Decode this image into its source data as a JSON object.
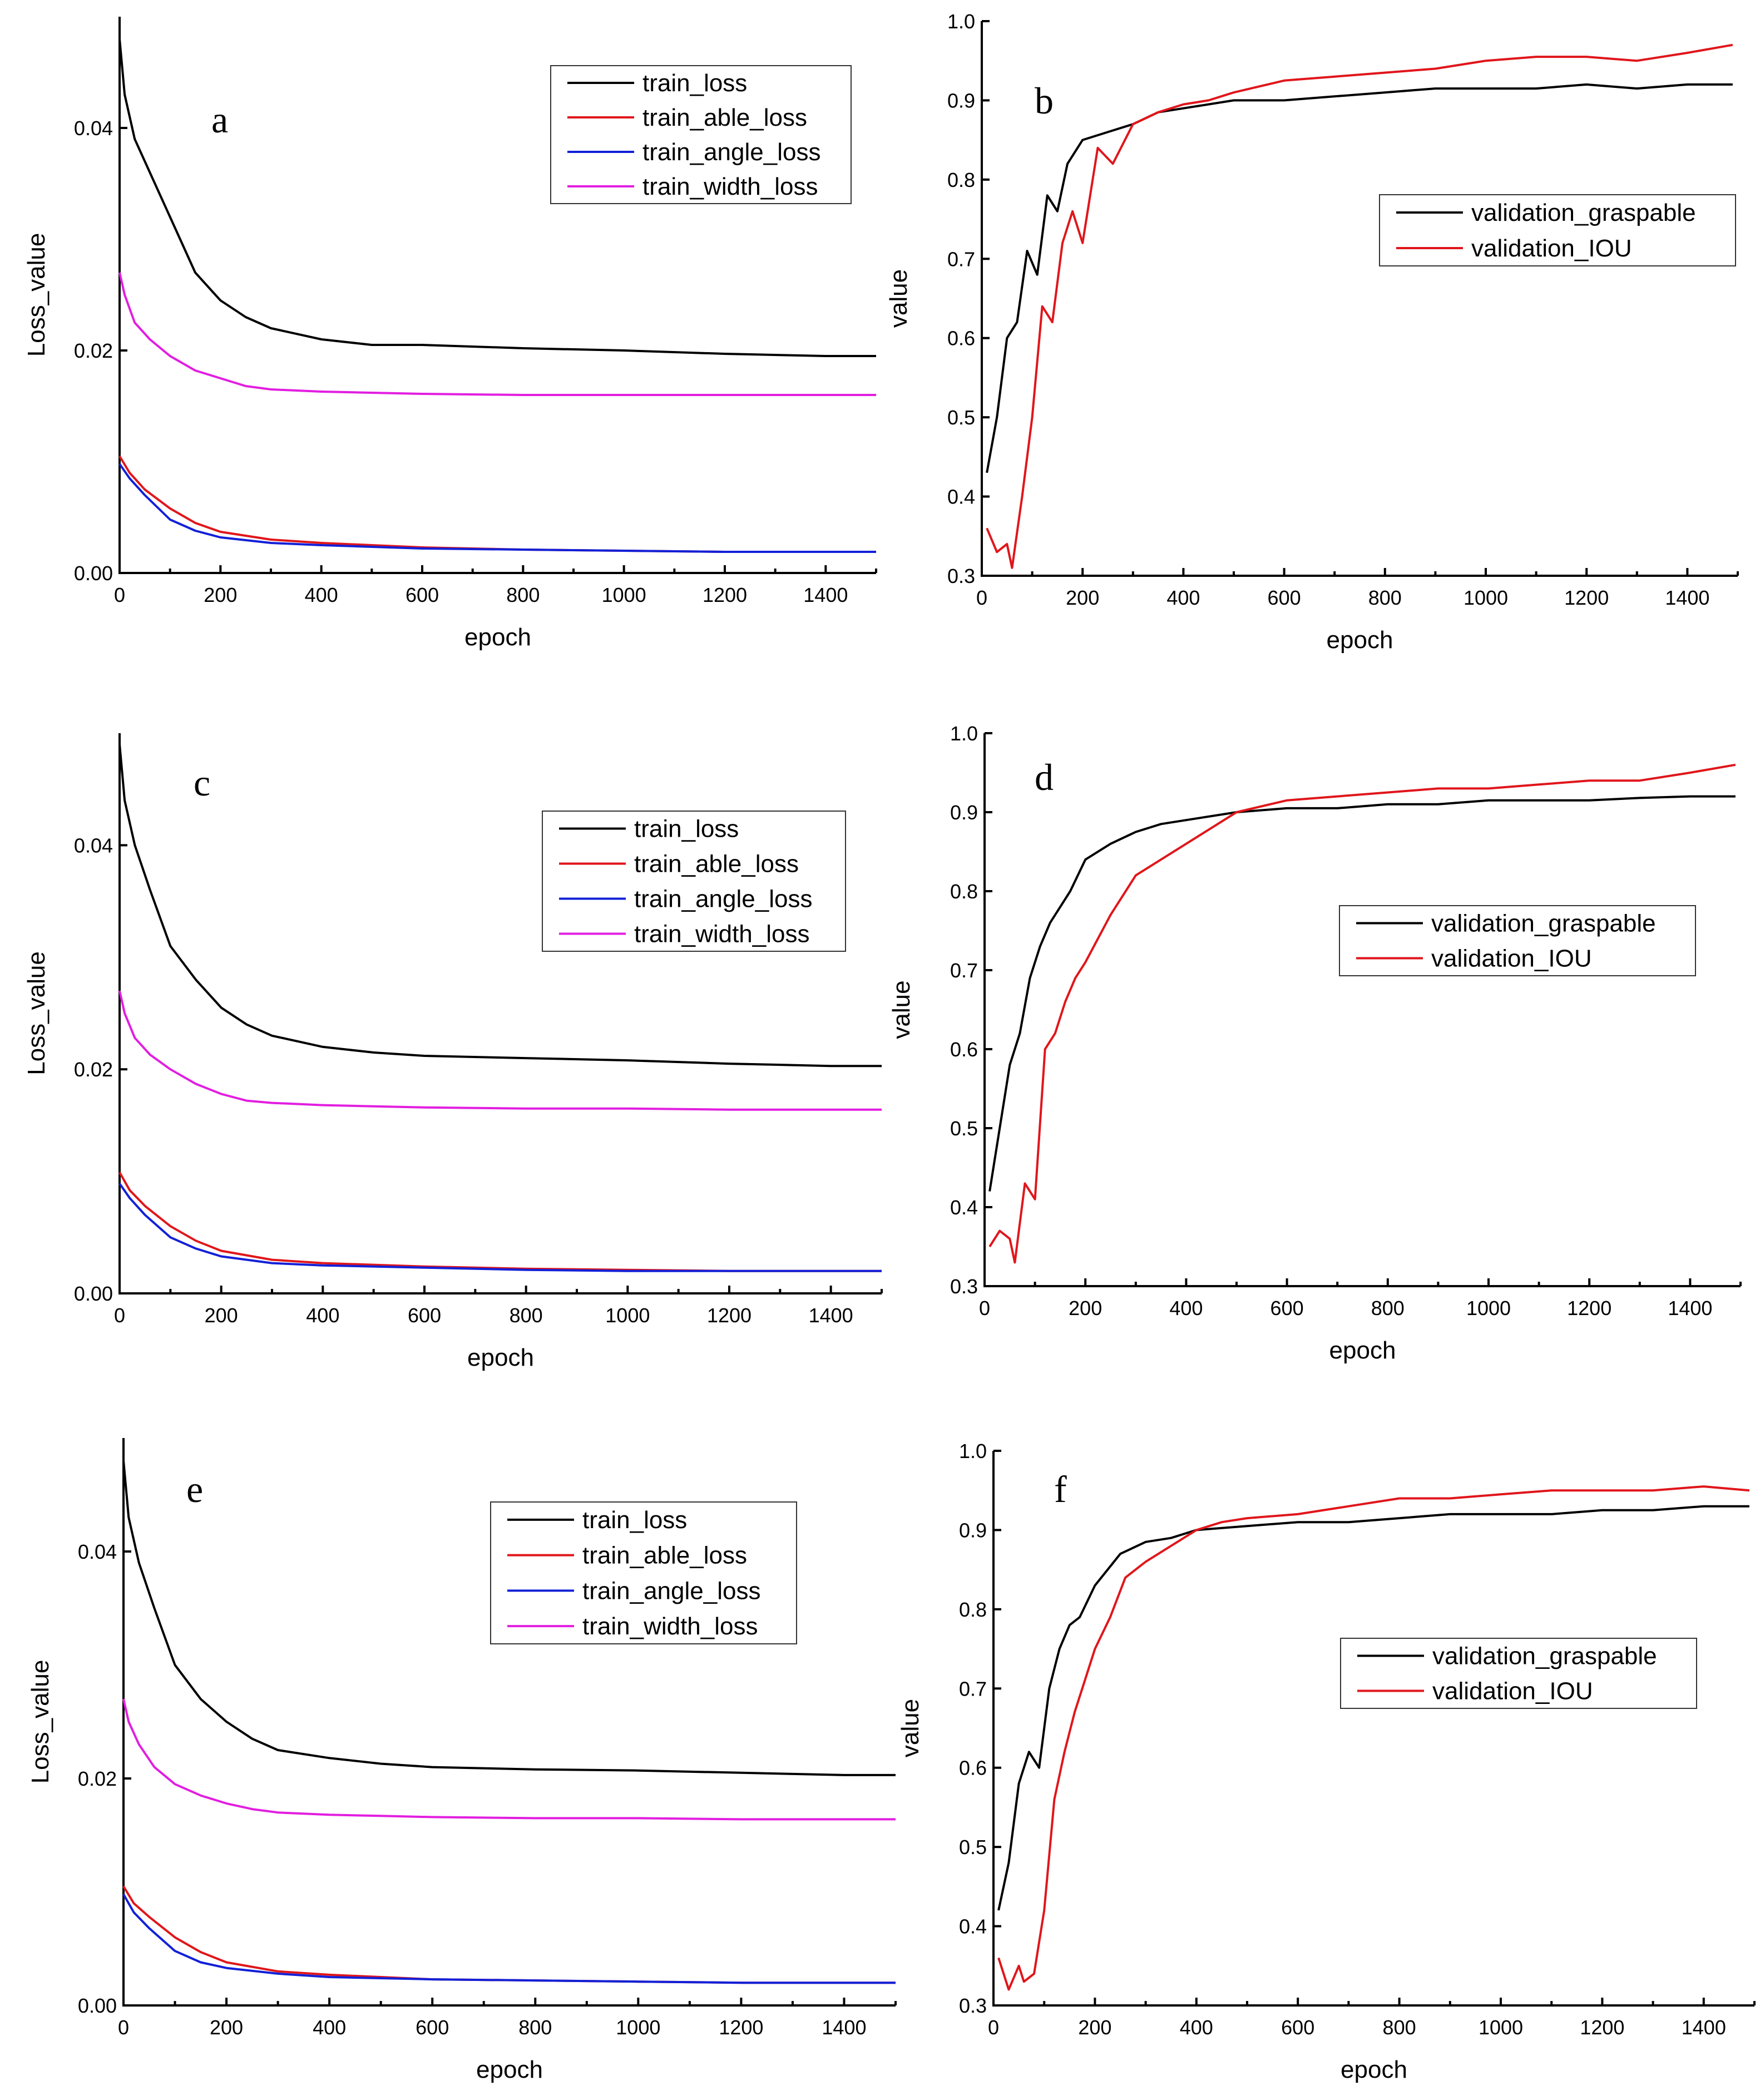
{
  "colors": {
    "train_loss": "#000000",
    "train_able_loss": "#e0161b",
    "train_angle_loss": "#1220d8",
    "train_width_loss": "#e21ee0",
    "validation_graspable": "#000000",
    "validation_IOU": "#e0161b"
  },
  "chart_data": [
    {
      "id": "a",
      "panel": "a",
      "type": "line",
      "xlabel": "epoch",
      "ylabel": "Loss_value",
      "xlim": [
        0,
        1500
      ],
      "ylim": [
        0,
        0.05
      ],
      "xticks": [
        "0",
        "200",
        "400",
        "600",
        "800",
        "1000",
        "1200",
        "1400"
      ],
      "yticks": [
        "0.00",
        "0.02",
        "0.04"
      ],
      "legend": "top-right",
      "series": [
        {
          "name": "train_loss",
          "color": "#000000",
          "x": [
            0,
            10,
            30,
            60,
            100,
            150,
            200,
            250,
            300,
            400,
            500,
            600,
            800,
            1000,
            1200,
            1400,
            1500
          ],
          "y": [
            0.048,
            0.043,
            0.039,
            0.036,
            0.032,
            0.027,
            0.0245,
            0.023,
            0.022,
            0.021,
            0.0205,
            0.0205,
            0.0202,
            0.02,
            0.0197,
            0.0195,
            0.0195
          ]
        },
        {
          "name": "train_able_loss",
          "color": "#e0161b",
          "x": [
            0,
            20,
            50,
            100,
            150,
            200,
            300,
            400,
            600,
            800,
            1000,
            1200,
            1400,
            1500
          ],
          "y": [
            0.0105,
            0.009,
            0.0075,
            0.0058,
            0.0045,
            0.0037,
            0.003,
            0.0027,
            0.0023,
            0.0021,
            0.002,
            0.0019,
            0.0019,
            0.0019
          ]
        },
        {
          "name": "train_angle_loss",
          "color": "#1220d8",
          "x": [
            0,
            20,
            50,
            100,
            150,
            200,
            300,
            400,
            600,
            800,
            1000,
            1200,
            1400,
            1500
          ],
          "y": [
            0.0098,
            0.0085,
            0.007,
            0.0048,
            0.0038,
            0.0032,
            0.0027,
            0.0025,
            0.0022,
            0.0021,
            0.002,
            0.0019,
            0.0019,
            0.0019
          ]
        },
        {
          "name": "train_width_loss",
          "color": "#e21ee0",
          "x": [
            0,
            10,
            30,
            60,
            100,
            150,
            200,
            250,
            300,
            400,
            500,
            600,
            800,
            1000,
            1200,
            1400,
            1500
          ],
          "y": [
            0.027,
            0.025,
            0.0225,
            0.021,
            0.0195,
            0.0182,
            0.0175,
            0.0168,
            0.0165,
            0.0163,
            0.0162,
            0.0161,
            0.016,
            0.016,
            0.016,
            0.016,
            0.016
          ]
        }
      ]
    },
    {
      "id": "b",
      "panel": "b",
      "type": "line",
      "xlabel": "epoch",
      "ylabel": "value",
      "xlim": [
        0,
        1500
      ],
      "ylim": [
        0.3,
        1.0
      ],
      "xticks": [
        "0",
        "200",
        "400",
        "600",
        "800",
        "1000",
        "1200",
        "1400"
      ],
      "yticks": [
        "0.3",
        "0.4",
        "0.5",
        "0.6",
        "0.7",
        "0.8",
        "0.9",
        "1.0"
      ],
      "legend": "center-right",
      "series": [
        {
          "name": "validation_graspable",
          "color": "#000000",
          "x": [
            10,
            30,
            50,
            70,
            90,
            110,
            130,
            150,
            170,
            200,
            250,
            300,
            350,
            400,
            500,
            600,
            700,
            800,
            900,
            1000,
            1100,
            1200,
            1300,
            1400,
            1490
          ],
          "y": [
            0.43,
            0.5,
            0.6,
            0.62,
            0.71,
            0.68,
            0.78,
            0.76,
            0.82,
            0.85,
            0.86,
            0.87,
            0.885,
            0.89,
            0.9,
            0.9,
            0.905,
            0.91,
            0.915,
            0.915,
            0.915,
            0.92,
            0.915,
            0.92,
            0.92
          ]
        },
        {
          "name": "validation_IOU",
          "color": "#e0161b",
          "x": [
            10,
            30,
            50,
            60,
            80,
            100,
            120,
            140,
            160,
            180,
            200,
            230,
            260,
            300,
            350,
            400,
            450,
            500,
            600,
            700,
            800,
            900,
            1000,
            1100,
            1200,
            1300,
            1400,
            1490
          ],
          "y": [
            0.36,
            0.33,
            0.34,
            0.31,
            0.4,
            0.5,
            0.64,
            0.62,
            0.72,
            0.76,
            0.72,
            0.84,
            0.82,
            0.87,
            0.885,
            0.895,
            0.9,
            0.91,
            0.925,
            0.93,
            0.935,
            0.94,
            0.95,
            0.955,
            0.955,
            0.95,
            0.96,
            0.97
          ]
        }
      ]
    },
    {
      "id": "c",
      "panel": "c",
      "type": "line",
      "xlabel": "epoch",
      "ylabel": "Loss_value",
      "xlim": [
        0,
        1500
      ],
      "ylim": [
        0,
        0.05
      ],
      "xticks": [
        "0",
        "200",
        "400",
        "600",
        "800",
        "1000",
        "1200",
        "1400"
      ],
      "yticks": [
        "0.00",
        "0.02",
        "0.04"
      ],
      "legend": "top-right",
      "series": [
        {
          "name": "train_loss",
          "color": "#000000",
          "x": [
            0,
            10,
            30,
            60,
            100,
            150,
            200,
            250,
            300,
            400,
            500,
            600,
            800,
            1000,
            1200,
            1400,
            1500
          ],
          "y": [
            0.049,
            0.044,
            0.04,
            0.036,
            0.031,
            0.028,
            0.0255,
            0.024,
            0.023,
            0.022,
            0.0215,
            0.0212,
            0.021,
            0.0208,
            0.0205,
            0.0203,
            0.0203
          ]
        },
        {
          "name": "train_able_loss",
          "color": "#e0161b",
          "x": [
            0,
            20,
            50,
            100,
            150,
            200,
            300,
            400,
            600,
            800,
            1000,
            1200,
            1400,
            1500
          ],
          "y": [
            0.0108,
            0.0092,
            0.0078,
            0.006,
            0.0047,
            0.0038,
            0.003,
            0.0027,
            0.0024,
            0.0022,
            0.0021,
            0.002,
            0.002,
            0.002
          ]
        },
        {
          "name": "train_angle_loss",
          "color": "#1220d8",
          "x": [
            0,
            20,
            50,
            100,
            150,
            200,
            300,
            400,
            600,
            800,
            1000,
            1200,
            1400,
            1500
          ],
          "y": [
            0.0098,
            0.0085,
            0.007,
            0.005,
            0.004,
            0.0033,
            0.0027,
            0.0025,
            0.0023,
            0.0021,
            0.002,
            0.002,
            0.002,
            0.002
          ]
        },
        {
          "name": "train_width_loss",
          "color": "#e21ee0",
          "x": [
            0,
            10,
            30,
            60,
            100,
            150,
            200,
            250,
            300,
            400,
            500,
            600,
            800,
            1000,
            1200,
            1400,
            1500
          ],
          "y": [
            0.027,
            0.025,
            0.0228,
            0.0213,
            0.02,
            0.0187,
            0.0178,
            0.0172,
            0.017,
            0.0168,
            0.0167,
            0.0166,
            0.0165,
            0.0165,
            0.0164,
            0.0164,
            0.0164
          ]
        }
      ]
    },
    {
      "id": "d",
      "panel": "d",
      "type": "line",
      "xlabel": "epoch",
      "ylabel": "value",
      "xlim": [
        0,
        1500
      ],
      "ylim": [
        0.3,
        1.0
      ],
      "xticks": [
        "0",
        "200",
        "400",
        "600",
        "800",
        "1000",
        "1200",
        "1400"
      ],
      "yticks": [
        "0.3",
        "0.4",
        "0.5",
        "0.6",
        "0.7",
        "0.8",
        "0.9",
        "1.0"
      ],
      "legend": "center-right",
      "series": [
        {
          "name": "validation_graspable",
          "color": "#000000",
          "x": [
            10,
            30,
            50,
            70,
            90,
            110,
            130,
            150,
            170,
            200,
            250,
            300,
            350,
            400,
            500,
            600,
            700,
            800,
            900,
            1000,
            1100,
            1200,
            1300,
            1400,
            1490
          ],
          "y": [
            0.42,
            0.5,
            0.58,
            0.62,
            0.69,
            0.73,
            0.76,
            0.78,
            0.8,
            0.84,
            0.86,
            0.875,
            0.885,
            0.89,
            0.9,
            0.905,
            0.905,
            0.91,
            0.91,
            0.915,
            0.915,
            0.915,
            0.918,
            0.92,
            0.92
          ]
        },
        {
          "name": "validation_IOU",
          "color": "#e0161b",
          "x": [
            10,
            30,
            50,
            60,
            80,
            100,
            120,
            140,
            160,
            180,
            200,
            250,
            300,
            350,
            400,
            450,
            500,
            600,
            700,
            800,
            900,
            1000,
            1100,
            1200,
            1300,
            1400,
            1490
          ],
          "y": [
            0.35,
            0.37,
            0.36,
            0.33,
            0.43,
            0.41,
            0.6,
            0.62,
            0.66,
            0.69,
            0.71,
            0.77,
            0.82,
            0.84,
            0.86,
            0.88,
            0.9,
            0.915,
            0.92,
            0.925,
            0.93,
            0.93,
            0.935,
            0.94,
            0.94,
            0.95,
            0.96
          ]
        }
      ]
    },
    {
      "id": "e",
      "panel": "e",
      "type": "line",
      "xlabel": "epoch",
      "ylabel": "Loss_value",
      "xlim": [
        0,
        1500
      ],
      "ylim": [
        0,
        0.05
      ],
      "xticks": [
        "0",
        "200",
        "400",
        "600",
        "800",
        "1000",
        "1200",
        "1400"
      ],
      "yticks": [
        "0.00",
        "0.02",
        "0.04"
      ],
      "legend": "top-right",
      "series": [
        {
          "name": "train_loss",
          "color": "#000000",
          "x": [
            0,
            10,
            30,
            60,
            100,
            150,
            200,
            250,
            300,
            400,
            500,
            600,
            800,
            1000,
            1200,
            1400,
            1500
          ],
          "y": [
            0.048,
            0.043,
            0.039,
            0.035,
            0.03,
            0.027,
            0.025,
            0.0235,
            0.0225,
            0.0218,
            0.0213,
            0.021,
            0.0208,
            0.0207,
            0.0205,
            0.0203,
            0.0203
          ]
        },
        {
          "name": "train_able_loss",
          "color": "#e0161b",
          "x": [
            0,
            20,
            50,
            100,
            150,
            200,
            300,
            400,
            600,
            800,
            1000,
            1200,
            1400,
            1500
          ],
          "y": [
            0.0105,
            0.009,
            0.0078,
            0.006,
            0.0047,
            0.0038,
            0.003,
            0.0027,
            0.0023,
            0.0022,
            0.0021,
            0.002,
            0.002,
            0.002
          ]
        },
        {
          "name": "train_angle_loss",
          "color": "#1220d8",
          "x": [
            0,
            20,
            50,
            100,
            150,
            200,
            300,
            400,
            600,
            800,
            1000,
            1200,
            1400,
            1500
          ],
          "y": [
            0.0098,
            0.0082,
            0.0068,
            0.0048,
            0.0038,
            0.0033,
            0.0028,
            0.0025,
            0.0023,
            0.0022,
            0.0021,
            0.002,
            0.002,
            0.002
          ]
        },
        {
          "name": "train_width_loss",
          "color": "#e21ee0",
          "x": [
            0,
            10,
            30,
            60,
            100,
            150,
            200,
            250,
            300,
            400,
            500,
            600,
            800,
            1000,
            1200,
            1400,
            1500
          ],
          "y": [
            0.027,
            0.025,
            0.023,
            0.021,
            0.0195,
            0.0185,
            0.0178,
            0.0173,
            0.017,
            0.0168,
            0.0167,
            0.0166,
            0.0165,
            0.0165,
            0.0164,
            0.0164,
            0.0164
          ]
        }
      ]
    },
    {
      "id": "f",
      "panel": "f",
      "type": "line",
      "xlabel": "epoch",
      "ylabel": "value",
      "xlim": [
        0,
        1500
      ],
      "ylim": [
        0.3,
        1.0
      ],
      "xticks": [
        "0",
        "200",
        "400",
        "600",
        "800",
        "1000",
        "1200",
        "1400"
      ],
      "yticks": [
        "0.3",
        "0.4",
        "0.5",
        "0.6",
        "0.7",
        "0.8",
        "0.9",
        "1.0"
      ],
      "legend": "center-right",
      "series": [
        {
          "name": "validation_graspable",
          "color": "#000000",
          "x": [
            10,
            30,
            50,
            70,
            90,
            110,
            130,
            150,
            170,
            200,
            250,
            300,
            350,
            400,
            500,
            600,
            700,
            800,
            900,
            1000,
            1100,
            1200,
            1300,
            1400,
            1490
          ],
          "y": [
            0.42,
            0.48,
            0.58,
            0.62,
            0.6,
            0.7,
            0.75,
            0.78,
            0.79,
            0.83,
            0.87,
            0.885,
            0.89,
            0.9,
            0.905,
            0.91,
            0.91,
            0.915,
            0.92,
            0.92,
            0.92,
            0.925,
            0.925,
            0.93,
            0.93
          ]
        },
        {
          "name": "validation_IOU",
          "color": "#e0161b",
          "x": [
            10,
            30,
            50,
            60,
            80,
            100,
            120,
            140,
            160,
            180,
            200,
            230,
            260,
            300,
            350,
            400,
            450,
            500,
            600,
            700,
            800,
            900,
            1000,
            1100,
            1200,
            1300,
            1400,
            1490
          ],
          "y": [
            0.36,
            0.32,
            0.35,
            0.33,
            0.34,
            0.42,
            0.56,
            0.62,
            0.67,
            0.71,
            0.75,
            0.79,
            0.84,
            0.86,
            0.88,
            0.9,
            0.91,
            0.915,
            0.92,
            0.93,
            0.94,
            0.94,
            0.945,
            0.95,
            0.95,
            0.95,
            0.955,
            0.95
          ]
        }
      ]
    }
  ]
}
